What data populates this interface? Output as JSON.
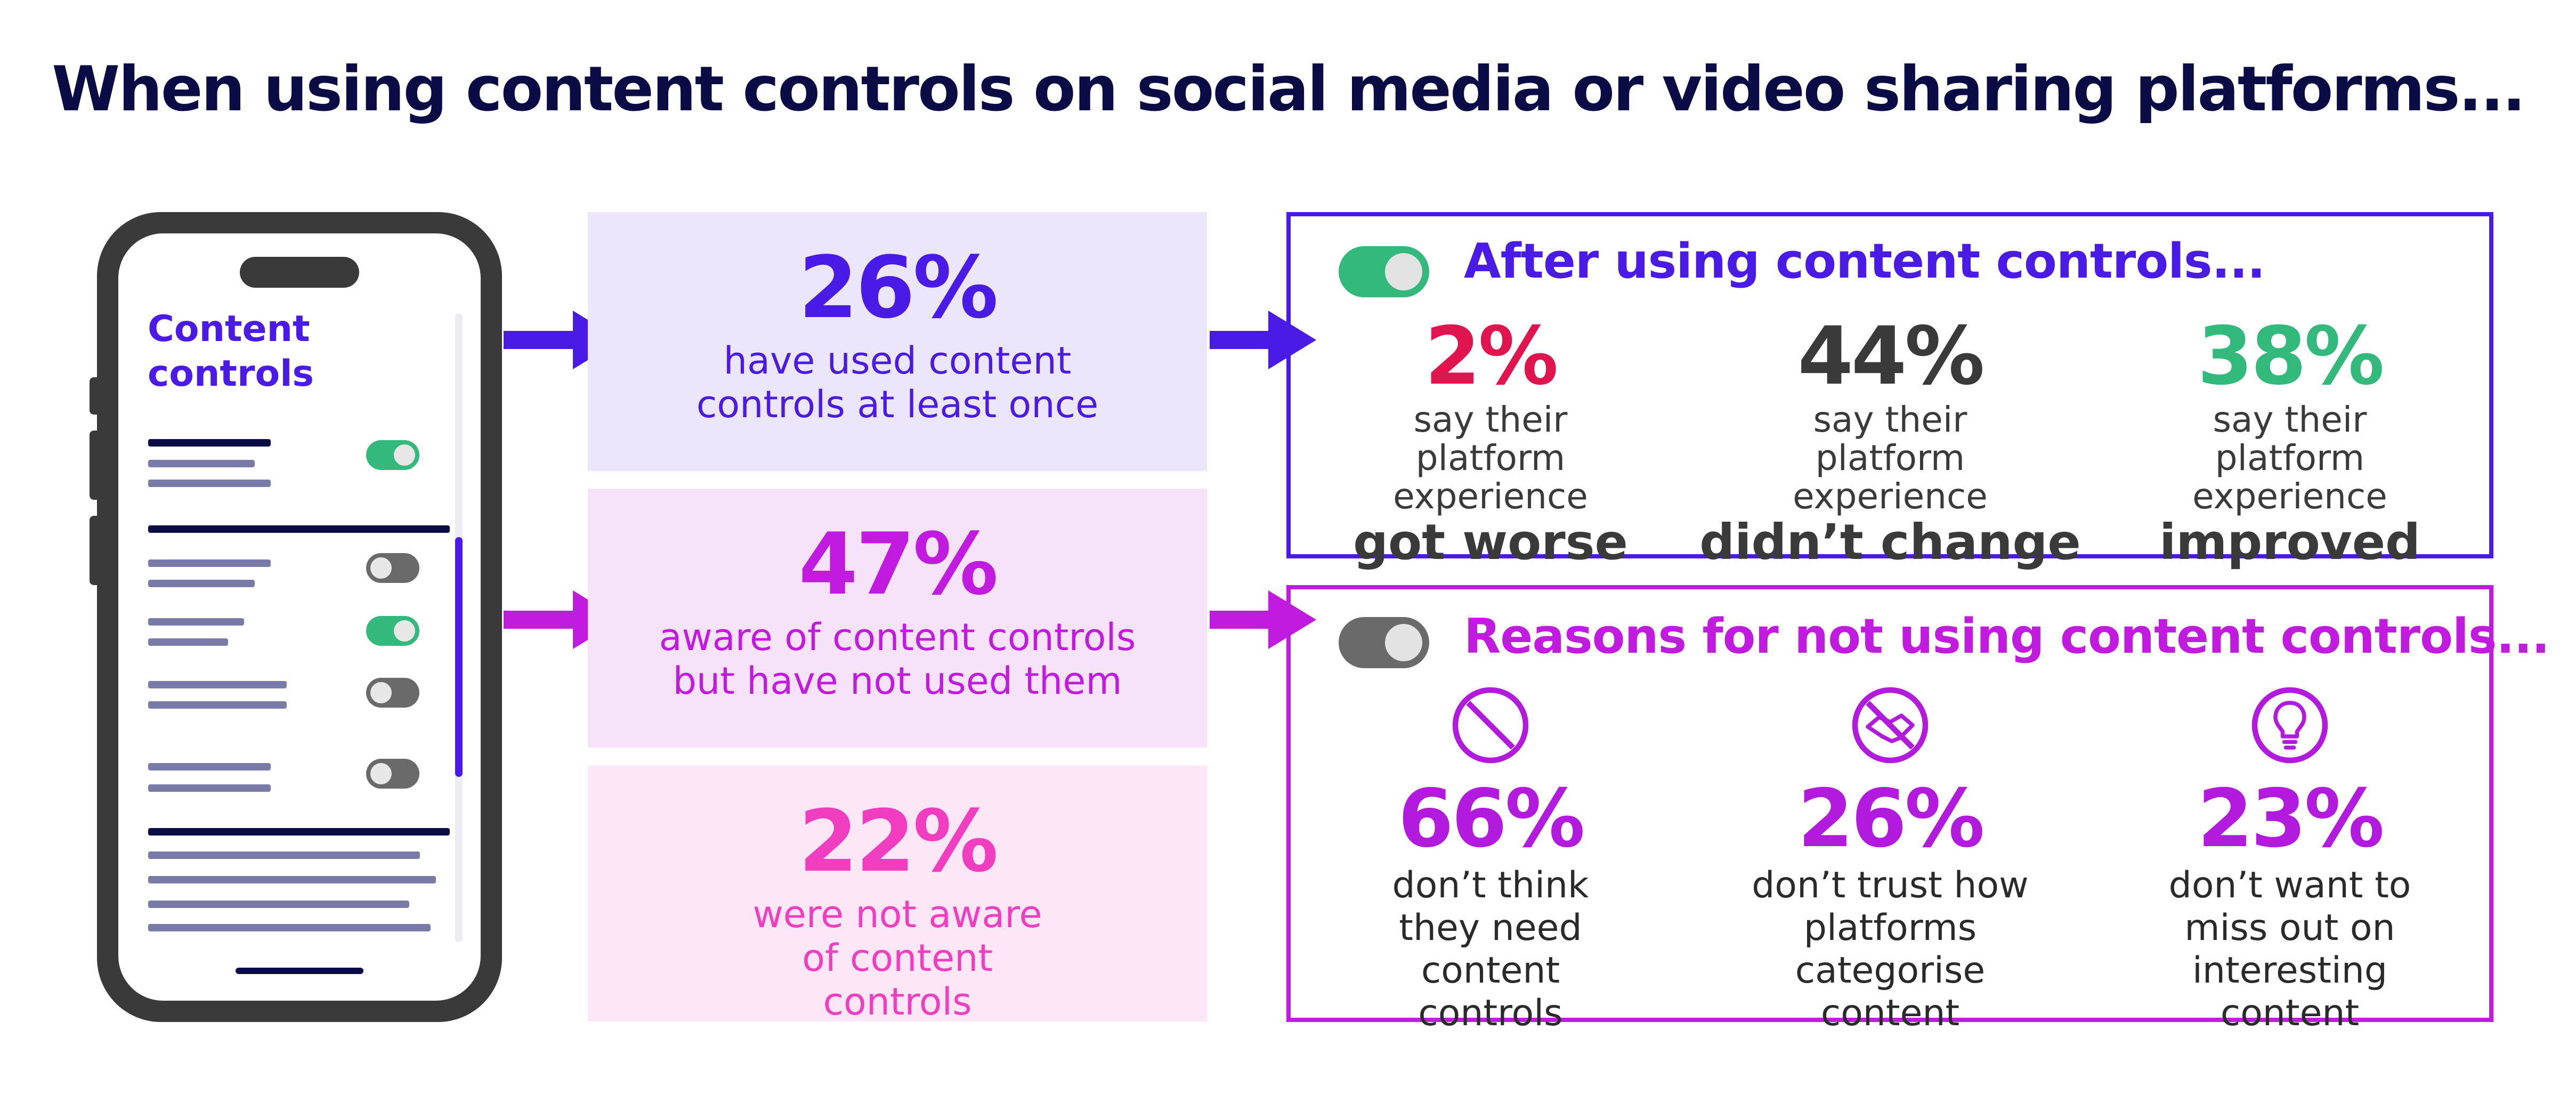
{
  "title": "When using content controls on social media or video sharing platforms...",
  "colors": {
    "navy": "#0b0b45",
    "purple": "#4a1ae6",
    "magenta": "#c21be0",
    "pink": "#f13ec0",
    "green": "#33b97c",
    "red": "#e0144f",
    "grey": "#3a3a3a"
  },
  "phone": {
    "heading": "Content controls",
    "toggles": [
      "on",
      "off",
      "on",
      "off",
      "off"
    ]
  },
  "awareness": [
    {
      "value": "26%",
      "label": "have used content controls at least once"
    },
    {
      "value": "47%",
      "label": "aware of content controls but have not used them"
    },
    {
      "value": "22%",
      "label": "were not aware of content controls"
    }
  ],
  "after": {
    "heading": "After using content controls...",
    "toggle": "on",
    "items": [
      {
        "value": "2%",
        "label": "say their platform experience",
        "emphasis": "got worse"
      },
      {
        "value": "44%",
        "label": "say their platform experience",
        "emphasis": "didn’t change"
      },
      {
        "value": "38%",
        "label": "say their platform experience",
        "emphasis": "improved"
      }
    ]
  },
  "reasons": {
    "heading": "Reasons for not using content controls...",
    "toggle": "off",
    "items": [
      {
        "icon": "prohibited-icon",
        "value": "66%",
        "label": "don’t think they need content controls"
      },
      {
        "icon": "no-handshake-icon",
        "value": "26%",
        "label": "don’t trust how platforms categorise content"
      },
      {
        "icon": "lightbulb-icon",
        "value": "23%",
        "label": "don’t want to miss out on interesting content"
      }
    ]
  }
}
